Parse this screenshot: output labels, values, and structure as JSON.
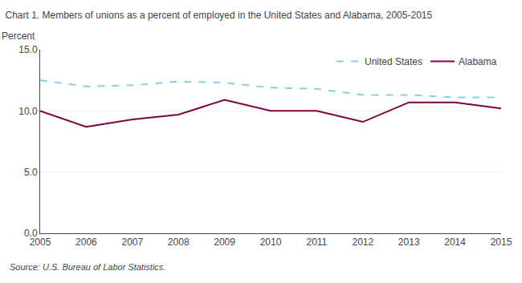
{
  "chart_data": {
    "type": "line",
    "title": "Chart 1. Members of unions as a percent of employed in the United States and Alabama, 2005-2015",
    "ylabel": "Percent",
    "annotations": [
      "Source: U.S. Bureau of Labor Statistics."
    ],
    "x": [
      2005,
      2006,
      2007,
      2008,
      2009,
      2010,
      2011,
      2012,
      2013,
      2014,
      2015
    ],
    "series": [
      {
        "name": "United States",
        "color": "#87CEEB",
        "line_style": "dashed",
        "values": [
          12.5,
          12.0,
          12.1,
          12.4,
          12.3,
          11.9,
          11.8,
          11.3,
          11.3,
          11.1,
          11.1
        ]
      },
      {
        "name": "Alabama",
        "color": "#800040",
        "line_style": "solid",
        "values": [
          10.0,
          8.7,
          9.3,
          9.7,
          10.9,
          10.0,
          10.0,
          9.1,
          10.7,
          10.7,
          10.2
        ]
      }
    ],
    "xlim": [
      2005,
      2015
    ],
    "xticks": [
      2005,
      2006,
      2007,
      2008,
      2009,
      2010,
      2011,
      2012,
      2013,
      2014,
      2015
    ],
    "ylim": [
      0,
      15.0
    ],
    "yticks": [
      {
        "value": 0.0,
        "label": "0.0"
      },
      {
        "value": 5.0,
        "label": "5.0"
      },
      {
        "value": 10.0,
        "label": "10.0"
      },
      {
        "value": 15.0,
        "label": "15.0"
      }
    ],
    "grid": true,
    "legend": "upper right"
  }
}
